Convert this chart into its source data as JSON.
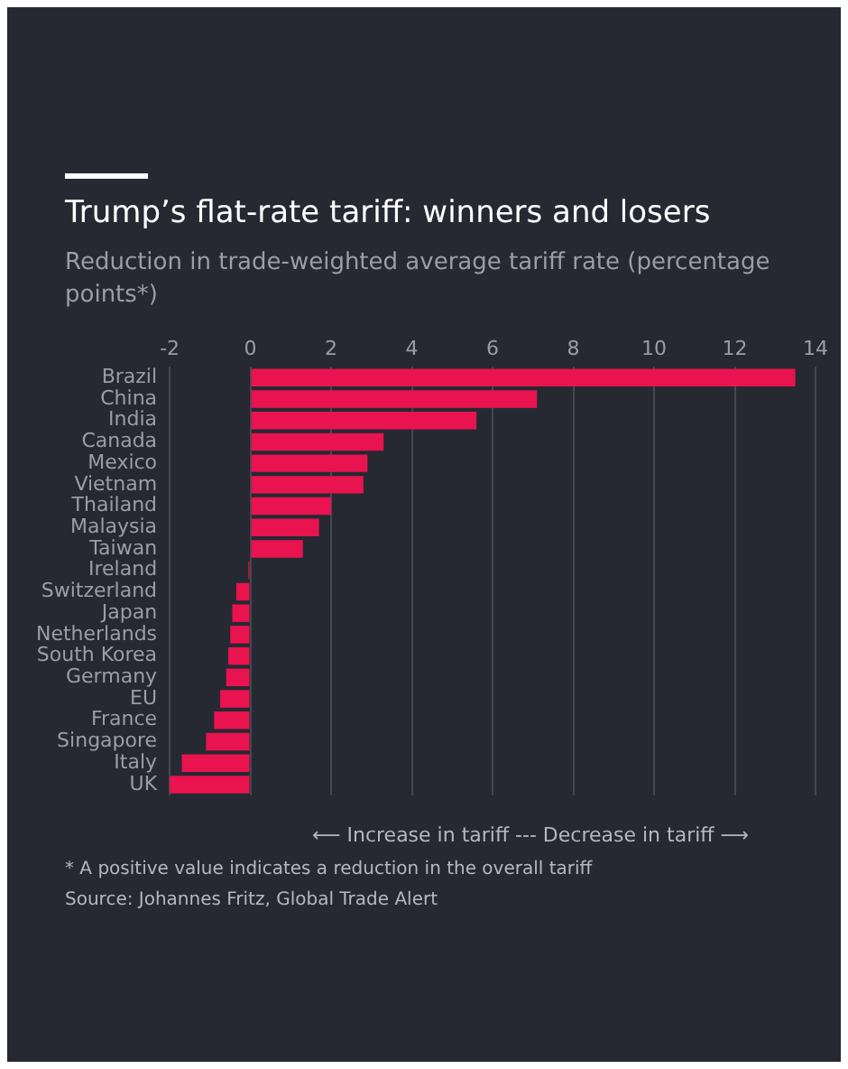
{
  "chart_data": {
    "type": "bar",
    "orientation": "horizontal",
    "title": "Trump’s flat-rate tariff: winners and losers",
    "subtitle": "Reduction in trade-weighted average tariff rate (percentage points*)",
    "categories": [
      "Brazil",
      "China",
      "India",
      "Canada",
      "Mexico",
      "Vietnam",
      "Thailand",
      "Malaysia",
      "Taiwan",
      "Ireland",
      "Switzerland",
      "Japan",
      "Netherlands",
      "South Korea",
      "Germany",
      "EU",
      "France",
      "Singapore",
      "Italy",
      "UK"
    ],
    "values": [
      13.5,
      7.1,
      5.6,
      3.3,
      2.9,
      2.8,
      2.0,
      1.7,
      1.3,
      -0.05,
      -0.35,
      -0.45,
      -0.5,
      -0.55,
      -0.6,
      -0.75,
      -0.9,
      -1.1,
      -1.7,
      -2.0
    ],
    "color": "#e8134f",
    "xlim": [
      -2,
      14
    ],
    "xticks": [
      -2,
      0,
      2,
      4,
      6,
      8,
      10,
      12,
      14
    ],
    "grid": "x",
    "legend": false,
    "annotations": [
      "⟵ Increase in tariff --- Decrease in tariff ⟶",
      "* A positive value indicates a reduction in the overall tariff",
      "Source: Johannes Fritz, Global Trade Alert"
    ]
  }
}
